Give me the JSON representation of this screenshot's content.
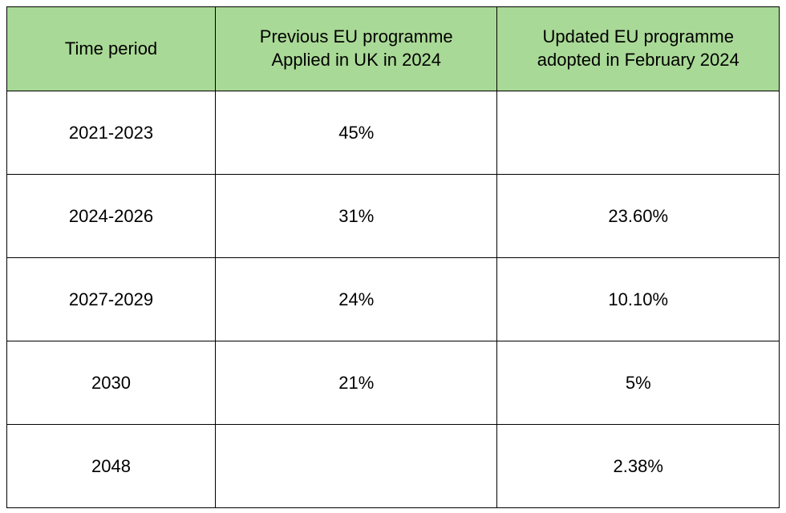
{
  "table": {
    "header_bg_color": "#a9d996",
    "columns": [
      "Time period",
      "Previous EU programme\nApplied in UK in 2024",
      "Updated EU programme\nadopted in February 2024"
    ],
    "column_widths": [
      "27%",
      "36.5%",
      "36.5%"
    ],
    "rows": [
      [
        "2021-2023",
        "45%",
        ""
      ],
      [
        "2024-2026",
        "31%",
        "23.60%"
      ],
      [
        "2027-2029",
        "24%",
        "10.10%"
      ],
      [
        "2030",
        "21%",
        "5%"
      ],
      [
        "2048",
        "",
        "2.38%"
      ]
    ],
    "font_size": 22,
    "border_color": "#000000",
    "text_color": "#000000"
  }
}
